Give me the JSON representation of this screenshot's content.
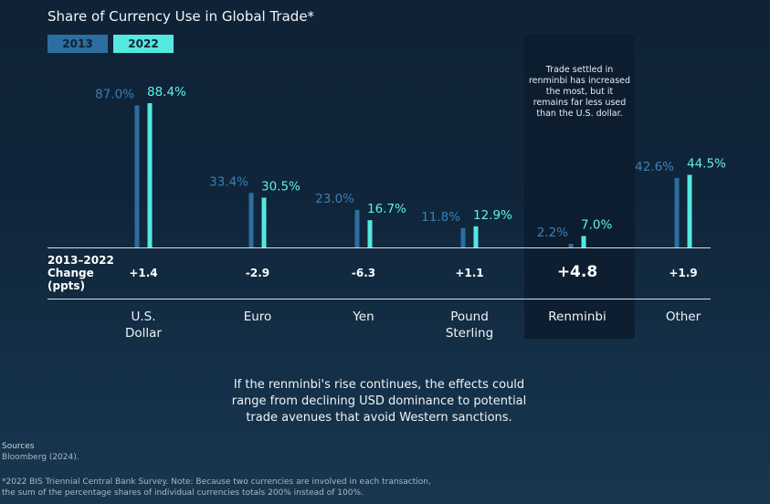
{
  "title": "Share of Currency Use in Global Trade*",
  "legend": {
    "y2013": "2013",
    "y2022": "2022"
  },
  "colors": {
    "y2013": "#2d6d9f",
    "y2022": "#54e8e0",
    "label2013": "#3a7fb3",
    "label2022": "#5ff0e6"
  },
  "note": "Trade settled in renminbi has increased the most, but it remains far less used than the U.S. dollar.",
  "change_label": [
    "2013–2022",
    "Change",
    "(ppts)"
  ],
  "chart_data": {
    "type": "bar",
    "title": "Share of Currency Use in Global Trade*",
    "categories": [
      "U.S. Dollar",
      "Euro",
      "Yen",
      "Pound Sterling",
      "Renminbi",
      "Other"
    ],
    "series": [
      {
        "name": "2013",
        "values": [
          87.0,
          33.4,
          23.0,
          11.8,
          2.2,
          42.6
        ]
      },
      {
        "name": "2022",
        "values": [
          88.4,
          30.5,
          16.7,
          12.9,
          7.0,
          44.5
        ]
      }
    ],
    "value_labels_2013": [
      "87.0%",
      "33.4%",
      "23.0%",
      "11.8%",
      "2.2%",
      "42.6%"
    ],
    "value_labels_2022": [
      "88.4%",
      "30.5%",
      "16.7%",
      "12.9%",
      "7.0%",
      "44.5%"
    ],
    "changes": [
      "+1.4",
      "-2.9",
      "-6.3",
      "+1.1",
      "+4.8",
      "+1.9"
    ],
    "category_lines": [
      [
        "U.S.",
        "Dollar"
      ],
      [
        "Euro"
      ],
      [
        "Yen"
      ],
      [
        "Pound",
        "Sterling"
      ],
      [
        "Renminbi"
      ],
      [
        "Other"
      ]
    ],
    "ylim": [
      0,
      100
    ]
  },
  "summary": "If the renminbi's rise continues, the effects could range from declining USD dominance to potential trade avenues that avoid Western sanctions.",
  "sources_title": "Sources",
  "sources_body": "Bloomberg (2024).",
  "footnote_line1": "*2022 BIS Triennial Central Bank Survey. Note: Because two currencies are involved in each transaction,",
  "footnote_line2": "the sum of the percentage shares of individual currencies totals 200% instead of 100%."
}
